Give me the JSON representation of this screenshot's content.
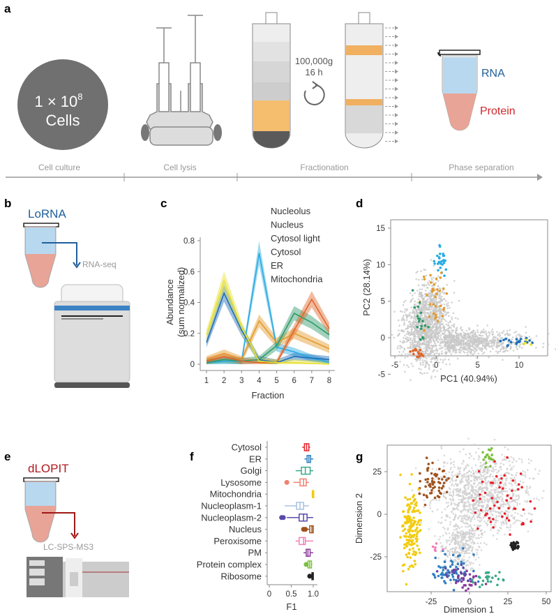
{
  "panels": {
    "a": "a",
    "b": "b",
    "c": "c",
    "d": "d",
    "e": "e",
    "f": "f",
    "g": "g"
  },
  "panel_a": {
    "cells_line1": "1 × 10",
    "cells_exp": "8",
    "cells_line2": "Cells",
    "speed": "100,000g",
    "time": "16 h",
    "rna": "RNA",
    "protein": "Protein",
    "timeline": [
      "Cell culture",
      "Cell lysis",
      "Fractionation",
      "Phase separation"
    ],
    "colors": {
      "rna": "#1f5f9a",
      "protein": "#d0262a",
      "cell": "#707070"
    }
  },
  "panel_b": {
    "title": "LoRNA",
    "method": "RNA-seq",
    "title_color": "#1f5f9a"
  },
  "panel_e": {
    "title": "dLOPIT",
    "method": "LC-SPS-MS3",
    "title_color": "#b0181c"
  },
  "chart_data": [
    {
      "panel": "c",
      "type": "line",
      "xlabel": "Fraction",
      "ylabel": "Abundance",
      "ylabel2": "(sum normalized)",
      "x": [
        1,
        2,
        3,
        4,
        5,
        6,
        7,
        8
      ],
      "ylim": [
        0,
        0.8
      ],
      "yticks": [
        "0",
        "0.2",
        "0.4",
        "0.6",
        "0.8"
      ],
      "xticks": [
        "1",
        "2",
        "3",
        "4",
        "5",
        "6",
        "7",
        "8"
      ],
      "legend_placement": "top-right",
      "series": [
        {
          "name": "Nucleolus",
          "color": "#29abe2",
          "values": [
            0.01,
            0.02,
            0.02,
            0.72,
            0.11,
            0.08,
            0.04,
            0.01
          ]
        },
        {
          "name": "Nucleus",
          "color": "#e39a2a",
          "values": [
            0.03,
            0.07,
            0.03,
            0.28,
            0.14,
            0.2,
            0.15,
            0.1
          ]
        },
        {
          "name": "Cytosol light",
          "color": "#2e9a68",
          "values": [
            0.01,
            0.03,
            0.02,
            0.03,
            0.12,
            0.33,
            0.27,
            0.19
          ]
        },
        {
          "name": "Cytosol",
          "color": "#e0662a",
          "values": [
            0.02,
            0.05,
            0.02,
            0.01,
            0.01,
            0.22,
            0.42,
            0.23
          ]
        },
        {
          "name": "ER",
          "color": "#1f6fb8",
          "values": [
            0.14,
            0.46,
            0.22,
            0.03,
            0.01,
            0.05,
            0.04,
            0.03
          ]
        },
        {
          "name": "Mitochondria",
          "color": "#e6e032",
          "values": [
            0.19,
            0.54,
            0.24,
            0.02,
            0.01,
            0.01,
            0.005,
            0.0
          ]
        }
      ]
    },
    {
      "panel": "d",
      "type": "scatter",
      "xlabel": "PC1 (40.94%)",
      "ylabel": "PC2 (28.14%)",
      "xlim": [
        -5,
        13
      ],
      "ylim": [
        -4,
        17
      ],
      "xticks": [
        "-5",
        "0",
        "5",
        "10"
      ],
      "yticks": [
        "-5",
        "0",
        "5",
        "10",
        "15"
      ],
      "background_color": "#c8c8c8",
      "clusters": [
        {
          "name": "Nucleolus",
          "color": "#29abe2",
          "center": [
            0.5,
            11
          ],
          "spread": [
            0.4,
            1.3
          ],
          "n": 25
        },
        {
          "name": "Nucleus",
          "color": "#e39a2a",
          "center": [
            0.2,
            5.5
          ],
          "spread": [
            0.9,
            1.8
          ],
          "n": 35
        },
        {
          "name": "Cytosol light",
          "color": "#2e9a68",
          "center": [
            -1.8,
            2.5
          ],
          "spread": [
            0.4,
            1.5
          ],
          "n": 18
        },
        {
          "name": "Cytosol",
          "color": "#e0662a",
          "center": [
            -2.1,
            -2.2
          ],
          "spread": [
            0.5,
            0.3
          ],
          "n": 18
        },
        {
          "name": "ER",
          "color": "#1f6fb8",
          "center": [
            9.8,
            -0.5
          ],
          "spread": [
            1,
            0.3
          ],
          "n": 22
        },
        {
          "name": "Mitochondria",
          "color": "#e6e032",
          "center": [
            11.2,
            -0.8
          ],
          "spread": [
            0.3,
            0.2
          ],
          "n": 5
        }
      ]
    },
    {
      "panel": "f",
      "type": "box",
      "xlabel": "F1",
      "xlim": [
        0,
        1
      ],
      "xticks": [
        "0",
        "0.5",
        "1.0"
      ],
      "categories": [
        {
          "name": "Cytosol",
          "color": "#e8202a",
          "q1": 0.8,
          "median": 0.85,
          "q3": 0.9,
          "min": 0.75,
          "max": 0.93,
          "outliers": []
        },
        {
          "name": "ER",
          "color": "#2f7fc1",
          "q1": 0.86,
          "median": 0.9,
          "q3": 0.94,
          "min": 0.8,
          "max": 1.0,
          "outliers": []
        },
        {
          "name": "Golgi",
          "color": "#3aa98a",
          "q1": 0.73,
          "median": 0.82,
          "q3": 0.93,
          "min": 0.6,
          "max": 1.0,
          "outliers": []
        },
        {
          "name": "Lysosome",
          "color": "#f08070",
          "q1": 0.7,
          "median": 0.78,
          "q3": 0.84,
          "min": 0.55,
          "max": 0.9,
          "outliers": [
            0.4
          ]
        },
        {
          "name": "Mitochondria",
          "color": "#f2cc10",
          "q1": 0.98,
          "median": 1.0,
          "q3": 1.0,
          "min": 0.96,
          "max": 1.0,
          "outliers": []
        },
        {
          "name": "Nucleoplasm-1",
          "color": "#a8c0e0",
          "q1": 0.62,
          "median": 0.7,
          "q3": 0.78,
          "min": 0.35,
          "max": 0.9,
          "outliers": []
        },
        {
          "name": "Nucleoplasm-2",
          "color": "#5a4aa8",
          "q1": 0.68,
          "median": 0.78,
          "q3": 0.86,
          "min": 0.4,
          "max": 1.0,
          "outliers": [
            0.28,
            0.32
          ]
        },
        {
          "name": "Nucleus",
          "color": "#a0521e",
          "q1": 0.92,
          "median": 0.97,
          "q3": 1.0,
          "min": 0.85,
          "max": 1.0,
          "outliers": [
            0.78,
            0.82
          ]
        },
        {
          "name": "Peroxisome",
          "color": "#f080b8",
          "q1": 0.68,
          "median": 0.78,
          "q3": 0.82,
          "min": 0.6,
          "max": 1.0,
          "outliers": []
        },
        {
          "name": "PM",
          "color": "#8a3a9a",
          "q1": 0.84,
          "median": 0.88,
          "q3": 0.93,
          "min": 0.78,
          "max": 1.0,
          "outliers": []
        },
        {
          "name": "Protein complex",
          "color": "#7cc040",
          "q1": 0.88,
          "median": 0.92,
          "q3": 0.96,
          "min": 0.84,
          "max": 0.98,
          "outliers": [
            0.84
          ]
        },
        {
          "name": "Ribosome",
          "color": "#222222",
          "q1": 0.97,
          "median": 0.98,
          "q3": 1.0,
          "min": 0.95,
          "max": 1.0,
          "outliers": [
            0.92
          ]
        }
      ]
    },
    {
      "panel": "g",
      "type": "scatter",
      "xlabel": "Dimension 1",
      "ylabel": "Dimension 2",
      "xlim": [
        -47,
        52
      ],
      "ylim": [
        -48,
        40
      ],
      "xticks": [
        "-25",
        "0",
        "25",
        "50"
      ],
      "yticks": [
        "-25",
        "0",
        "25"
      ],
      "background_color": "#cfcfcf",
      "clusters": [
        {
          "name": "Cytosol",
          "color": "#e8202a",
          "center": [
            22,
            5
          ],
          "spread": [
            12,
            12
          ],
          "n": 55
        },
        {
          "name": "Nucleus",
          "color": "#a0521e",
          "center": [
            -22,
            18
          ],
          "spread": [
            6,
            6
          ],
          "n": 60
        },
        {
          "name": "Mitochondria",
          "color": "#f2cc10",
          "center": [
            -38,
            -8
          ],
          "spread": [
            3,
            12
          ],
          "n": 150
        },
        {
          "name": "ER",
          "color": "#2f7fc1",
          "center": [
            -12,
            -32
          ],
          "spread": [
            6,
            5
          ],
          "n": 60
        },
        {
          "name": "Nucleoplasm-2",
          "color": "#5a4aa8",
          "center": [
            -7,
            -36
          ],
          "spread": [
            5,
            3
          ],
          "n": 25
        },
        {
          "name": "PM",
          "color": "#8a3a9a",
          "center": [
            0,
            -40
          ],
          "spread": [
            5,
            3
          ],
          "n": 25
        },
        {
          "name": "Golgi",
          "color": "#3aa98a",
          "center": [
            12,
            -37
          ],
          "spread": [
            5,
            3
          ],
          "n": 25
        },
        {
          "name": "Protein complex",
          "color": "#7cc040",
          "center": [
            12,
            33
          ],
          "spread": [
            2,
            3
          ],
          "n": 20
        },
        {
          "name": "Ribosome",
          "color": "#222222",
          "center": [
            29,
            -19
          ],
          "spread": [
            1.5,
            1.2
          ],
          "n": 30
        },
        {
          "name": "Peroxisome",
          "color": "#f080b8",
          "center": [
            -20,
            -20
          ],
          "spread": [
            2,
            2
          ],
          "n": 6
        }
      ]
    }
  ]
}
